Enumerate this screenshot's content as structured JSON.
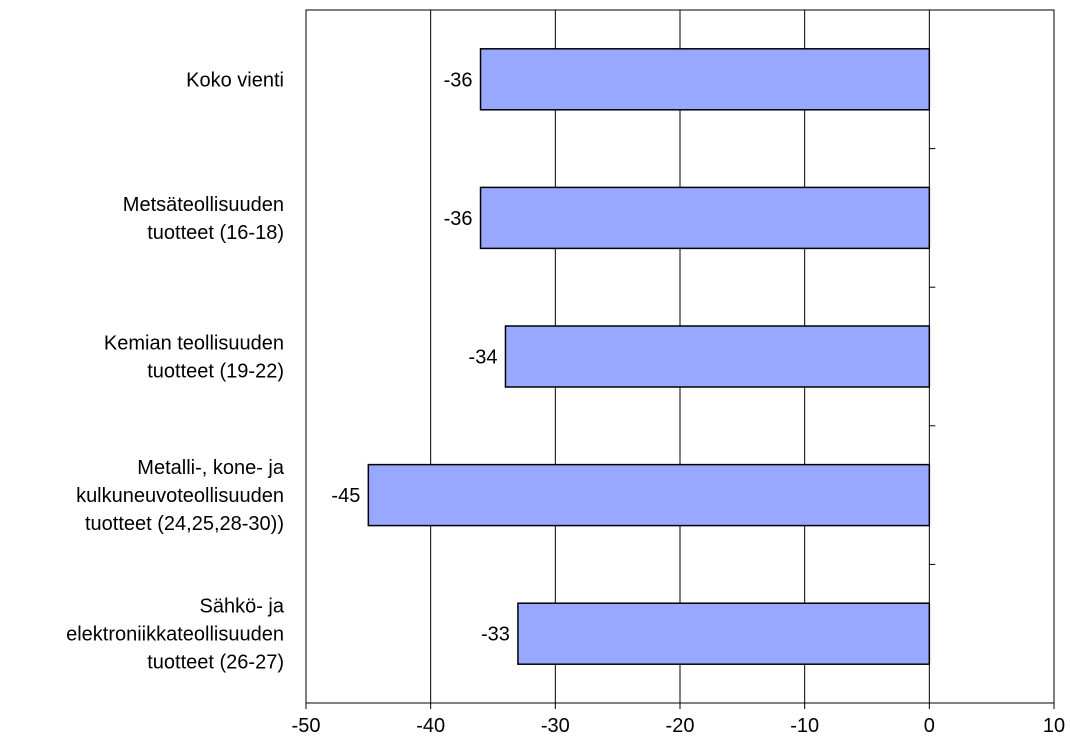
{
  "chart_data": {
    "type": "bar",
    "orientation": "horizontal",
    "categories": [
      [
        "Koko vienti"
      ],
      [
        "Metsäteollisuuden",
        "tuotteet (16-18)"
      ],
      [
        "Kemian teollisuuden",
        "tuotteet (19-22)"
      ],
      [
        "Metalli-, kone- ja",
        "kulkuneuvoteollisuuden",
        "tuotteet (24,25,28-30))"
      ],
      [
        "Sähkö- ja",
        "elektroniikkateollisuuden",
        "tuotteet (26-27)"
      ]
    ],
    "values": [
      -36,
      -36,
      -34,
      -45,
      -33
    ],
    "data_labels": [
      "-36",
      "-36",
      "-34",
      "-45",
      "-33"
    ],
    "xlim": [
      -50,
      10
    ],
    "x_ticks": [
      -50,
      -40,
      -30,
      -20,
      -10,
      0,
      10
    ],
    "x_tick_labels": [
      "-50",
      "-40",
      "-30",
      "-20",
      "-10",
      "0",
      "10"
    ],
    "title": "",
    "xlabel": "",
    "ylabel": "",
    "grid": "vertical",
    "bar_color": "#99a8ff",
    "bar_edge_color": "#000000"
  }
}
